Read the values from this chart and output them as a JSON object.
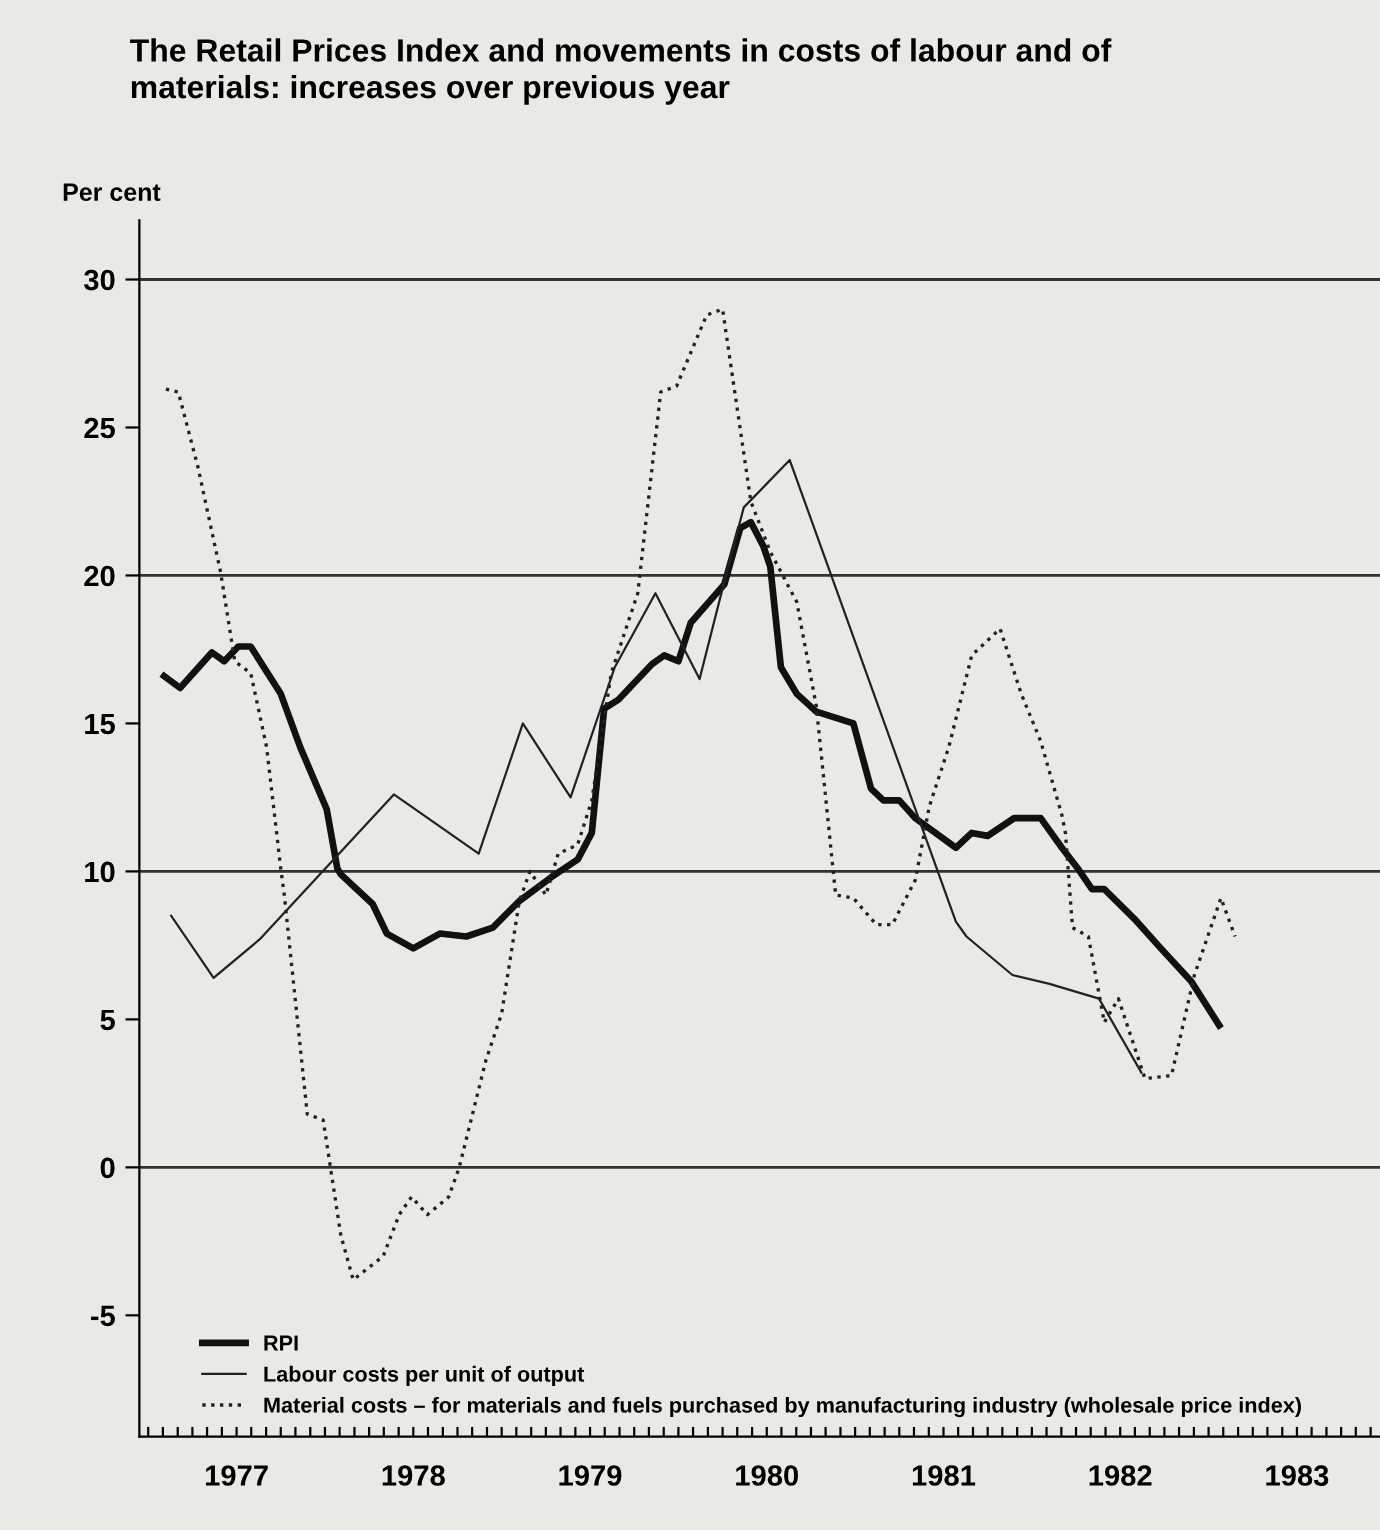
{
  "chart_data": {
    "type": "line",
    "title": "The Retail Prices Index and movements in costs of labour and of\nmaterials: increases over previous year",
    "ylabel": "Per cent",
    "xlim": [
      1976.95,
      1983.97
    ],
    "ylim": [
      -9.1,
      32
    ],
    "yticks": [
      -5,
      0,
      5,
      10,
      15,
      20,
      25,
      30
    ],
    "xticks": [
      {
        "value": 1977,
        "label": null
      },
      {
        "value": 1977.083,
        "label": null
      },
      {
        "value": 1977.167,
        "label": null
      },
      {
        "value": 1977.25,
        "label": null
      },
      {
        "value": 1977.333,
        "label": null
      },
      {
        "value": 1977.417,
        "label": null
      },
      {
        "value": 1977.5,
        "label": "1977"
      },
      {
        "value": 1977.583,
        "label": null
      },
      {
        "value": 1977.667,
        "label": null
      },
      {
        "value": 1977.75,
        "label": null
      },
      {
        "value": 1977.833,
        "label": null
      },
      {
        "value": 1977.917,
        "label": null
      },
      {
        "value": 1978,
        "label": null
      },
      {
        "value": 1978.083,
        "label": null
      },
      {
        "value": 1978.167,
        "label": null
      },
      {
        "value": 1978.25,
        "label": null
      },
      {
        "value": 1978.333,
        "label": null
      },
      {
        "value": 1978.417,
        "label": null
      },
      {
        "value": 1978.5,
        "label": "1978"
      },
      {
        "value": 1978.583,
        "label": null
      },
      {
        "value": 1978.667,
        "label": null
      },
      {
        "value": 1978.75,
        "label": null
      },
      {
        "value": 1978.833,
        "label": null
      },
      {
        "value": 1978.917,
        "label": null
      },
      {
        "value": 1979,
        "label": null
      },
      {
        "value": 1979.083,
        "label": null
      },
      {
        "value": 1979.167,
        "label": null
      },
      {
        "value": 1979.25,
        "label": null
      },
      {
        "value": 1979.333,
        "label": null
      },
      {
        "value": 1979.417,
        "label": null
      },
      {
        "value": 1979.5,
        "label": "1979"
      },
      {
        "value": 1979.583,
        "label": null
      },
      {
        "value": 1979.667,
        "label": null
      },
      {
        "value": 1979.75,
        "label": null
      },
      {
        "value": 1979.833,
        "label": null
      },
      {
        "value": 1979.917,
        "label": null
      },
      {
        "value": 1980,
        "label": null
      },
      {
        "value": 1980.083,
        "label": null
      },
      {
        "value": 1980.167,
        "label": null
      },
      {
        "value": 1980.25,
        "label": null
      },
      {
        "value": 1980.333,
        "label": null
      },
      {
        "value": 1980.417,
        "label": null
      },
      {
        "value": 1980.5,
        "label": "1980"
      },
      {
        "value": 1980.583,
        "label": null
      },
      {
        "value": 1980.667,
        "label": null
      },
      {
        "value": 1980.75,
        "label": null
      },
      {
        "value": 1980.833,
        "label": null
      },
      {
        "value": 1980.917,
        "label": null
      },
      {
        "value": 1981,
        "label": null
      },
      {
        "value": 1981.083,
        "label": null
      },
      {
        "value": 1981.167,
        "label": null
      },
      {
        "value": 1981.25,
        "label": null
      },
      {
        "value": 1981.333,
        "label": null
      },
      {
        "value": 1981.417,
        "label": null
      },
      {
        "value": 1981.5,
        "label": "1981"
      },
      {
        "value": 1981.583,
        "label": null
      },
      {
        "value": 1981.667,
        "label": null
      },
      {
        "value": 1981.75,
        "label": null
      },
      {
        "value": 1981.833,
        "label": null
      },
      {
        "value": 1981.917,
        "label": null
      },
      {
        "value": 1982,
        "label": null
      },
      {
        "value": 1982.083,
        "label": null
      },
      {
        "value": 1982.167,
        "label": null
      },
      {
        "value": 1982.25,
        "label": null
      },
      {
        "value": 1982.333,
        "label": null
      },
      {
        "value": 1982.417,
        "label": null
      },
      {
        "value": 1982.5,
        "label": "1982"
      },
      {
        "value": 1982.583,
        "label": null
      },
      {
        "value": 1982.667,
        "label": null
      },
      {
        "value": 1982.75,
        "label": null
      },
      {
        "value": 1982.833,
        "label": null
      },
      {
        "value": 1982.917,
        "label": null
      },
      {
        "value": 1983,
        "label": null
      },
      {
        "value": 1983.083,
        "label": null
      },
      {
        "value": 1983.167,
        "label": null
      },
      {
        "value": 1983.25,
        "label": null
      },
      {
        "value": 1983.333,
        "label": null
      },
      {
        "value": 1983.417,
        "label": null
      },
      {
        "value": 1983.5,
        "label": "1983"
      },
      {
        "value": 1983.583,
        "label": null
      },
      {
        "value": 1983.667,
        "label": null
      },
      {
        "value": 1983.75,
        "label": null
      },
      {
        "value": 1983.833,
        "label": null
      },
      {
        "value": 1983.917,
        "label": null
      }
    ],
    "ref_lines": [
      {
        "axis": "y",
        "value": 0,
        "color": "#333333"
      },
      {
        "axis": "y",
        "value": 10,
        "color": "#333333"
      },
      {
        "axis": "y",
        "value": 20,
        "color": "#333333"
      },
      {
        "axis": "y",
        "value": 30,
        "color": "#333333"
      }
    ],
    "grid": false,
    "legend": "bottom left",
    "marker": "none",
    "series": [
      {
        "name": "RPI",
        "color": "#111111",
        "line_style": "solid",
        "x": [
          1977.09,
          1977.18,
          1977.36,
          1977.43,
          1977.51,
          1977.58,
          1977.75,
          1977.86,
          1978.01,
          1978.07,
          1978.09,
          1978.27,
          1978.35,
          1978.5,
          1978.65,
          1978.8,
          1978.95,
          1979.1,
          1979.28,
          1979.43,
          1979.51,
          1979.58,
          1979.66,
          1979.85,
          1979.92,
          1980.0,
          1980.07,
          1980.26,
          1980.35,
          1980.41,
          1980.48,
          1980.52,
          1980.58,
          1980.67,
          1980.78,
          1980.99,
          1981.09,
          1981.16,
          1981.25,
          1981.34,
          1981.57,
          1981.66,
          1981.75,
          1981.9,
          1982.05,
          1982.17,
          1982.26,
          1982.34,
          1982.41,
          1982.58,
          1982.73,
          1982.9,
          1983.06
        ],
        "values": [
          16.6,
          16.2,
          17.4,
          17.1,
          17.6,
          17.6,
          16.0,
          14.2,
          12.1,
          10.1,
          9.9,
          8.9,
          7.9,
          7.4,
          7.9,
          7.8,
          8.1,
          9.0,
          9.8,
          10.4,
          11.3,
          15.5,
          15.8,
          17.0,
          17.3,
          17.1,
          18.4,
          19.7,
          21.6,
          21.8,
          21.0,
          20.3,
          16.9,
          16.0,
          15.4,
          15.0,
          12.8,
          12.4,
          12.4,
          11.8,
          10.8,
          11.3,
          11.2,
          11.8,
          11.8,
          10.8,
          10.1,
          9.4,
          9.4,
          8.4,
          7.4,
          6.3,
          4.8
        ]
      },
      {
        "name": "Labour costs per unit of output",
        "color": "#222222",
        "line_style": "solid",
        "x": [
          1977.13,
          1977.37,
          1977.63,
          1978.39,
          1978.87,
          1979.12,
          1979.39,
          1979.64,
          1979.87,
          1980.12,
          1980.26,
          1980.37,
          1980.63,
          1981.57,
          1981.63,
          1981.89,
          1982.1,
          1982.38,
          1982.62
        ],
        "values": [
          8.5,
          6.4,
          7.7,
          12.6,
          10.6,
          15.0,
          12.5,
          16.9,
          19.4,
          16.5,
          19.8,
          22.3,
          23.9,
          8.3,
          7.8,
          6.5,
          6.2,
          5.7,
          3.2
        ]
      },
      {
        "name": "Material costs – for materials and fuels purchased by manufacturing industry (wholesale price index)",
        "color": "#222222",
        "line_style": "dotted",
        "x": [
          1977.1,
          1977.17,
          1977.28,
          1977.41,
          1977.49,
          1977.58,
          1977.67,
          1977.75,
          1977.77,
          1977.9,
          1977.99,
          1978.09,
          1978.16,
          1978.33,
          1978.42,
          1978.49,
          1978.58,
          1978.7,
          1978.76,
          1978.91,
          1979.0,
          1979.1,
          1979.16,
          1979.25,
          1979.32,
          1979.43,
          1979.51,
          1979.62,
          1979.77,
          1979.9,
          1979.99,
          1980.16,
          1980.25,
          1980.41,
          1980.52,
          1980.67,
          1980.78,
          1980.89,
          1980.99,
          1981.12,
          1981.21,
          1981.34,
          1981.42,
          1981.53,
          1981.66,
          1981.82,
          1981.94,
          1982.05,
          1982.17,
          1982.19,
          1982.23,
          1982.32,
          1982.41,
          1982.49,
          1982.64,
          1982.79,
          1982.92,
          1983.07,
          1983.15
        ],
        "values": [
          26.3,
          26.2,
          23.7,
          20.1,
          17.1,
          16.7,
          14.2,
          10.1,
          9.2,
          1.8,
          1.6,
          -2.3,
          -3.8,
          -3.0,
          -1.6,
          -1.0,
          -1.6,
          -1.0,
          0.0,
          3.6,
          5.2,
          9.0,
          10.0,
          9.2,
          10.6,
          10.9,
          12.4,
          16.7,
          19.4,
          26.2,
          26.4,
          28.8,
          29.0,
          22.5,
          20.8,
          19.1,
          15.6,
          9.2,
          9.1,
          8.2,
          8.2,
          9.7,
          12.2,
          14.2,
          17.3,
          18.2,
          16.0,
          14.4,
          11.9,
          11.3,
          8.1,
          7.8,
          4.9,
          5.7,
          3.0,
          3.1,
          6.5,
          9.1,
          7.8
        ]
      }
    ]
  }
}
